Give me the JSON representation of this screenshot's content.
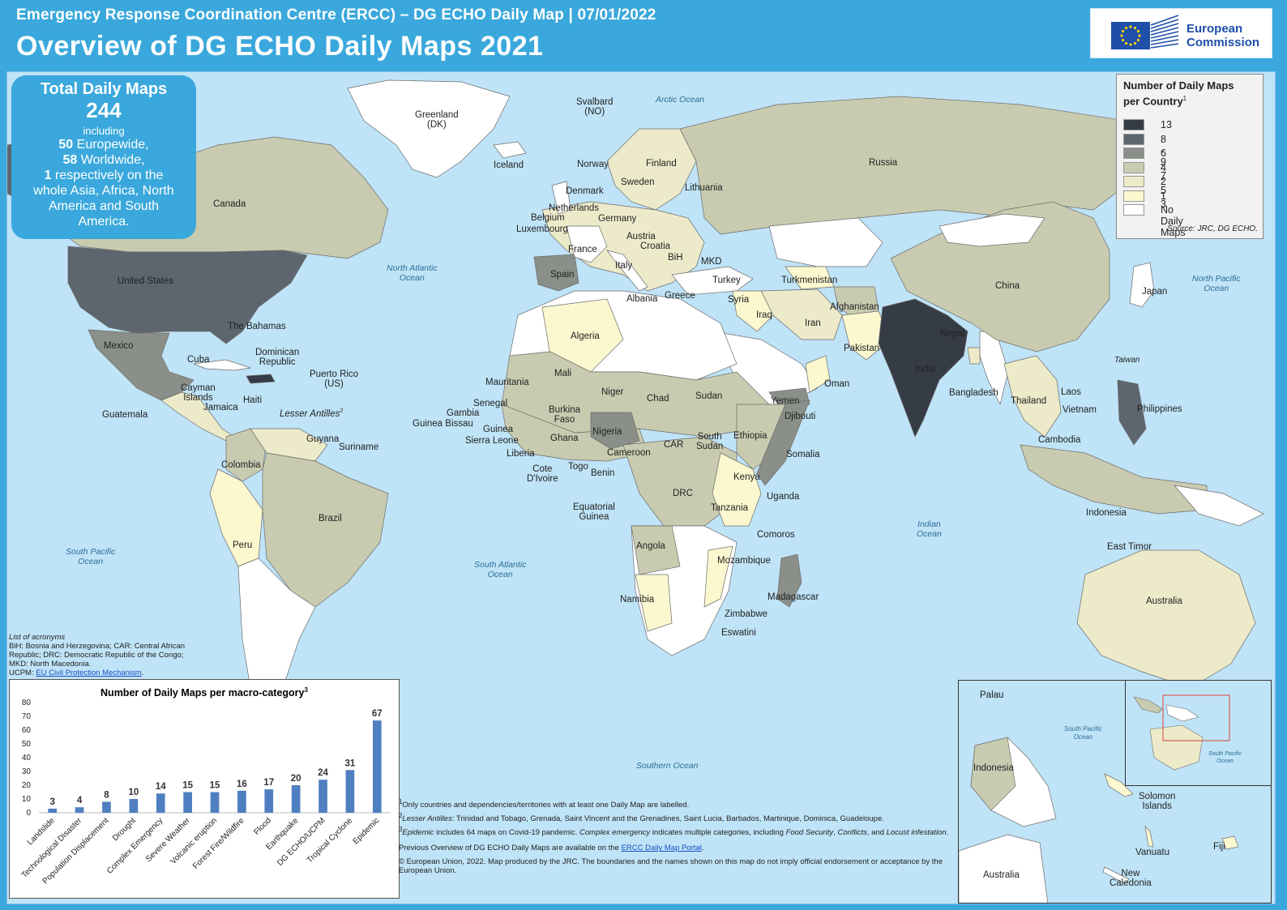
{
  "header": {
    "subtitle": "Emergency Response Coordination Centre (ERCC) – DG ECHO Daily Map | 07/01/2022",
    "title": "Overview of DG ECHO Daily Maps 2021",
    "logo_text_1": "European",
    "logo_text_2": "Commission"
  },
  "summary": {
    "heading": "Total Daily Maps",
    "total": "244",
    "including": "including",
    "europewide_count": "50",
    "europewide_label": "Europewide,",
    "worldwide_count": "58",
    "worldwide_label": "Worldwide,",
    "respectively_count": "1",
    "respectively_line1": "respectively on the",
    "respectively_line2": "whole Asia, Africa, North",
    "respectively_line3": "America and South",
    "respectively_line4": "America."
  },
  "legend": {
    "title_1": "Number of Daily Maps",
    "title_2": "per Country",
    "title_sup": "1",
    "items": [
      {
        "label": "13",
        "color": "#363c45"
      },
      {
        "label": "8 - 9",
        "color": "#5d666e"
      },
      {
        "label": "6 - 7",
        "color": "#8a8f8a"
      },
      {
        "label": "4 - 5",
        "color": "#c9cbb0"
      },
      {
        "label": "2 - 3",
        "color": "#eceac9"
      },
      {
        "label": "1",
        "color": "#fbf7cf"
      },
      {
        "label": "No Daily Maps",
        "color": "#ffffff"
      }
    ],
    "source": "Source: JRC, DG ECHO."
  },
  "oceans": {
    "arctic": "Arctic Ocean",
    "north_atlantic_1": "North Atlantic",
    "north_atlantic_2": "Ocean",
    "north_pacific_1": "North Pacific",
    "north_pacific_2": "Ocean",
    "south_pacific_1": "South Pacific",
    "south_pacific_2": "Ocean",
    "south_atlantic_1": "South Atlantic",
    "south_atlantic_2": "Ocean",
    "indian_1": "Indian",
    "indian_2": "Ocean",
    "southern": "Southern Ocean"
  },
  "countries": {
    "greenland": "Greenland",
    "greenland_dk": "(DK)",
    "svalbard": "Svalbard",
    "svalbard_no": "(NO)",
    "iceland": "Iceland",
    "norway": "Norway",
    "finland": "Finland",
    "sweden": "Sweden",
    "russia": "Russia",
    "lithuania": "Lithuania",
    "denmark": "Denmark",
    "netherlands": "Netherlands",
    "belgium": "Belgium",
    "germany": "Germany",
    "luxembourg": "Luxembourg",
    "austria": "Austria",
    "croatia": "Croatia",
    "france": "France",
    "bih": "BiH",
    "mkd": "MKD",
    "italy": "Italy",
    "spain": "Spain",
    "albania": "Albania",
    "greece": "Greece",
    "turkey": "Turkey",
    "turkmenistan": "Turkmenistan",
    "canada": "Canada",
    "united_states": "United States",
    "china": "China",
    "japan": "Japan",
    "syria": "Syria",
    "iraq": "Iraq",
    "afghanistan": "Afghanistan",
    "iran": "Iran",
    "nepal": "Nepal",
    "pakistan": "Pakistan",
    "india": "India",
    "bangladesh": "Bangladesh",
    "taiwan": "Taiwan",
    "laos": "Laos",
    "thailand": "Thailand",
    "vietnam": "Vietnam",
    "philippines": "Philippines",
    "cambodia": "Cambodia",
    "the_bahamas": "The Bahamas",
    "dominican_republic_1": "Dominican",
    "dominican_republic_2": "Republic",
    "mexico": "Mexico",
    "cuba": "Cuba",
    "puerto_rico": "Puerto Rico",
    "puerto_rico_us": "(US)",
    "cayman_1": "Cayman",
    "cayman_2": "Islands",
    "haiti": "Haiti",
    "jamaica": "Jamaica",
    "guatemala": "Guatemala",
    "lesser_antilles": "Lesser Antilles",
    "lesser_antilles_sup": "2",
    "guyana": "Guyana",
    "suriname": "Suriname",
    "colombia": "Colombia",
    "brazil": "Brazil",
    "peru": "Peru",
    "algeria": "Algeria",
    "mali": "Mali",
    "mauritania": "Mauritania",
    "niger": "Niger",
    "chad": "Chad",
    "sudan": "Sudan",
    "senegal": "Senegal",
    "gambia": "Gambia",
    "guinea_bissau": "Guinea Bissau",
    "burkina_1": "Burkina",
    "burkina_2": "Faso",
    "guinea": "Guinea",
    "sierra_leone": "Sierra Leone",
    "liberia": "Liberia",
    "ghana": "Ghana",
    "nigeria": "Nigeria",
    "cote_1": "Cote",
    "cote_2": "D'Ivoire",
    "togo": "Togo",
    "benin": "Benin",
    "cameroon": "Cameroon",
    "car": "CAR",
    "south_sudan_1": "South",
    "south_sudan_2": "Sudan",
    "ethiopia": "Ethiopia",
    "yemen": "Yemen",
    "djibouti": "Djibouti",
    "oman": "Oman",
    "somalia": "Somalia",
    "kenya": "Kenya",
    "uganda": "Uganda",
    "drc": "DRC",
    "tanzania": "Tanzania",
    "eq_guinea_1": "Equatorial",
    "eq_guinea_2": "Guinea",
    "comoros": "Comoros",
    "angola": "Angola",
    "mozambique": "Mozambique",
    "madagascar": "Madagascar",
    "namibia": "Namibia",
    "zimbabwe": "Zimbabwe",
    "eswatini": "Eswatini",
    "indonesia": "Indonesia",
    "east_timor": "East Timor",
    "australia": "Australia"
  },
  "acronyms": {
    "heading": "List of acronyms",
    "text": "BiH: Bosnia and Herzegovina; CAR: Central African Republic; DRC: Democratic Republic of the Congo; MKD: North Macedonia.",
    "ucpm_prefix": "UCPM: ",
    "ucpm_link": "EU Civil Protection Mechanism",
    "ucpm_suffix": "."
  },
  "chart_data": {
    "type": "bar",
    "title": "Number of Daily Maps per macro-category",
    "title_sup": "3",
    "categories": [
      "Landslide",
      "Technological Disaster",
      "Population Displacement",
      "Drought",
      "Complex Emergency",
      "Severe Weather",
      "Volcanic eruption",
      "Forest Fire/Wildfire",
      "Flood",
      "Earthquake",
      "DG ECHO/UCPM",
      "Tropical Cyclone",
      "Epidemic"
    ],
    "values": [
      3,
      4,
      8,
      10,
      14,
      15,
      15,
      16,
      17,
      20,
      24,
      31,
      67
    ],
    "ylim": [
      0,
      80
    ],
    "yticks": [
      0,
      10,
      20,
      30,
      40,
      50,
      60,
      70,
      80
    ],
    "bar_color": "#4f7fc0",
    "grid": false,
    "legend": "none"
  },
  "notes": {
    "n1_sup": "1",
    "n1": "Only countries and dependencies/territories with at least one Daily Map are labelled.",
    "n2_sup": "2",
    "n2_em": "Lesser Antilles",
    "n2": ": Trinidad and Tobago, Grenada, Saint Vincent and the Grenadines, Saint Lucia, Barbados, Martinique, Dominica, Guadeloupe.",
    "n3_sup": "3",
    "n3_em1": "Epidemic",
    "n3_a": " includes 64 maps on Covid-19 pandemic. ",
    "n3_em2": "Complex emergency",
    "n3_b": " indicates multiple categories, including ",
    "n3_em3": "Food Security",
    "n3_c": ", ",
    "n3_em4": "Conflicts",
    "n3_d": ", and ",
    "n3_em5": "Locust infestation",
    "n3_e": ".",
    "portal_prefix": "Previous Overview of DG ECHO Daily Maps are available on the ",
    "portal_link": "ERCC Daily Map Portal",
    "portal_suffix": ".",
    "copyright": "© European Union, 2022. Map produced by the JRC. The boundaries and the names shown on this map do not imply official endorsement or acceptance by the European Union."
  },
  "inset": {
    "palau": "Palau",
    "south_pacific_1": "South Pacific",
    "south_pacific_2": "Ocean",
    "indonesia": "Indonesia",
    "solomon_1": "Solomon",
    "solomon_2": "Islands",
    "vanuatu": "Vanuatu",
    "fiji": "Fiji",
    "australia": "Australia",
    "new_caledonia_1": "New",
    "new_caledonia_2": "Caledonia",
    "mini_south_pacific_1": "South Pacific",
    "mini_south_pacific_2": "Ocean"
  }
}
